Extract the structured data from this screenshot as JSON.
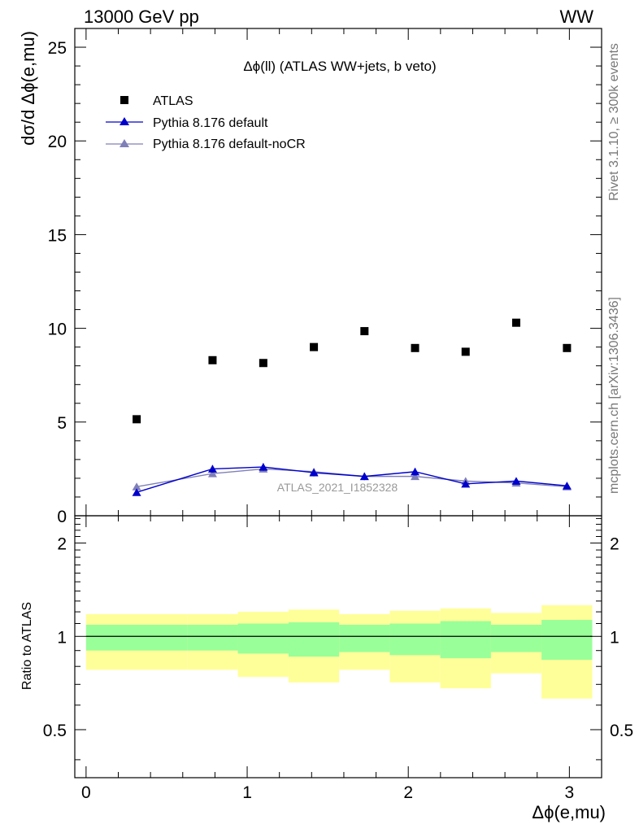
{
  "header": {
    "left": "13000 GeV pp",
    "right": "WW"
  },
  "side_labels": {
    "rivet": "Rivet 3.1.10, ≥ 300k events",
    "mcplots": "mcplots.cern.ch [arXiv:1306.3436]"
  },
  "chart_data": [
    {
      "type": "scatter",
      "panel": "main",
      "title": "Δϕ(ll) (ATLAS WW+jets, b veto)",
      "ylabel": "dσ/d Δϕ(e,mu)",
      "xlim": [
        -0.07,
        3.2
      ],
      "ylim": [
        0,
        26
      ],
      "yticks": [
        0,
        5,
        10,
        15,
        20,
        25
      ],
      "xticks": [
        0,
        1,
        2,
        3
      ],
      "legend_position": "top-left",
      "watermark": "ATLAS_2021_I1852328",
      "x_bins": [
        [
          0,
          0.628
        ],
        [
          0.628,
          0.942
        ],
        [
          0.942,
          1.257
        ],
        [
          1.257,
          1.571
        ],
        [
          1.571,
          1.885
        ],
        [
          1.885,
          2.199
        ],
        [
          2.199,
          2.513
        ],
        [
          2.513,
          2.827
        ],
        [
          2.827,
          3.142
        ]
      ],
      "series": [
        {
          "name": "ATLAS",
          "color": "#000000",
          "marker": "square",
          "x": [
            0.314,
            0.785,
            1.1,
            1.414,
            1.728,
            2.042,
            2.356,
            2.67,
            2.985
          ],
          "y": [
            5.15,
            8.3,
            8.15,
            9.0,
            9.85,
            8.95,
            8.75,
            10.3,
            8.95
          ]
        },
        {
          "name": "Pythia 8.176 default",
          "color": "#0000cc",
          "marker": "triangle",
          "x": [
            0.314,
            0.785,
            1.1,
            1.414,
            1.728,
            2.042,
            2.356,
            2.67,
            2.985
          ],
          "y": [
            1.25,
            2.5,
            2.6,
            2.3,
            2.1,
            2.35,
            1.7,
            1.85,
            1.6
          ],
          "err": [
            0.1,
            0.2,
            0.2,
            0.2,
            0.2,
            0.2,
            0.15,
            0.15,
            0.15
          ]
        },
        {
          "name": "Pythia 8.176 default-noCR",
          "color": "#8080b8",
          "marker": "triangle",
          "x": [
            0.314,
            0.785,
            1.1,
            1.414,
            1.728,
            2.042,
            2.356,
            2.67,
            2.985
          ],
          "y": [
            1.55,
            2.25,
            2.5,
            2.35,
            2.1,
            2.1,
            1.85,
            1.75,
            1.55
          ],
          "err": [
            0.1,
            0.15,
            0.15,
            0.15,
            0.15,
            0.15,
            0.15,
            0.15,
            0.15
          ]
        }
      ]
    },
    {
      "type": "area",
      "panel": "ratio",
      "ylabel": "Ratio to ATLAS",
      "xlabel": "Δϕ(e,mu)",
      "ylim": [
        0.35,
        2.45
      ],
      "yticks": [
        0.5,
        1,
        2
      ],
      "ytick_labels": [
        "0.5",
        "1",
        "2"
      ],
      "xlim": [
        -0.07,
        3.2
      ],
      "xticks": [
        0,
        1,
        2,
        3
      ],
      "reference_line": 1,
      "bands": [
        {
          "name": "outer",
          "color": "#ffff99",
          "lo": [
            0.78,
            0.78,
            0.74,
            0.71,
            0.78,
            0.71,
            0.68,
            0.76,
            0.63
          ],
          "hi": [
            1.18,
            1.18,
            1.2,
            1.22,
            1.18,
            1.21,
            1.23,
            1.19,
            1.26
          ]
        },
        {
          "name": "inner",
          "color": "#99ff99",
          "lo": [
            0.9,
            0.9,
            0.88,
            0.86,
            0.89,
            0.87,
            0.85,
            0.89,
            0.84
          ],
          "hi": [
            1.09,
            1.09,
            1.1,
            1.11,
            1.09,
            1.1,
            1.12,
            1.09,
            1.13
          ]
        }
      ]
    }
  ]
}
